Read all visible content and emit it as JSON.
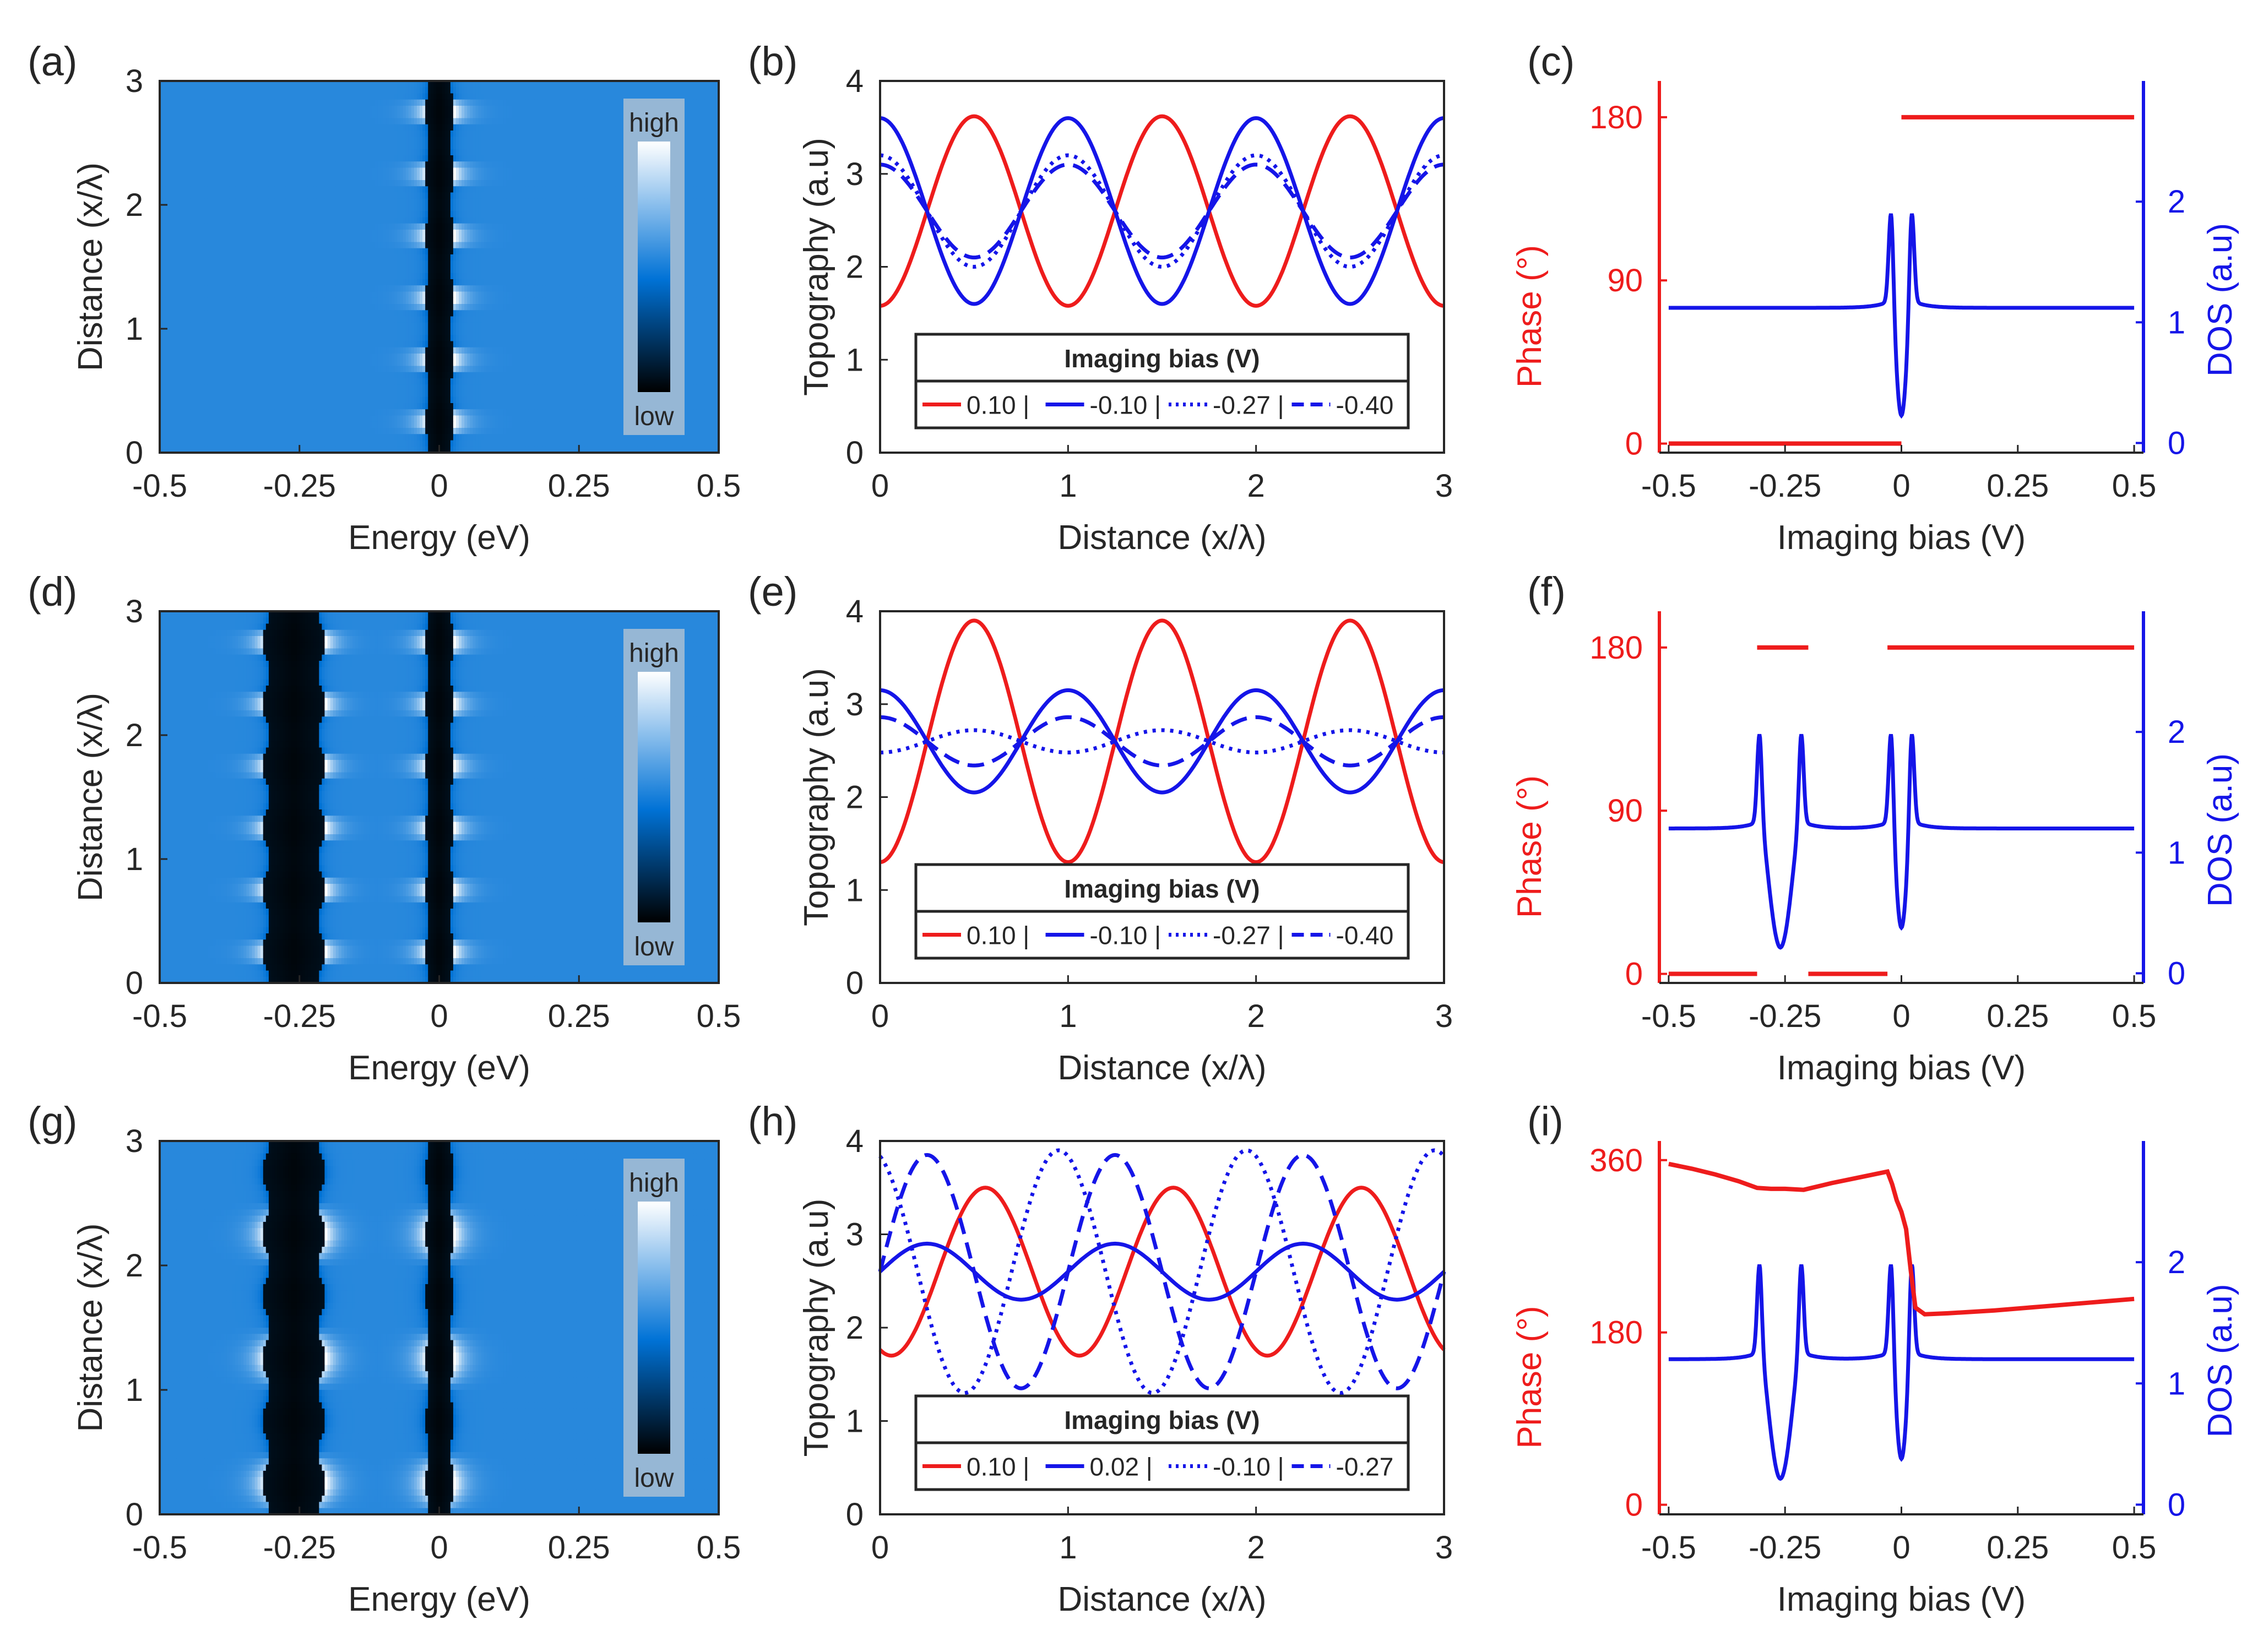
{
  "figure": {
    "panel_labels": [
      "(a)",
      "(b)",
      "(c)",
      "(d)",
      "(e)",
      "(f)",
      "(g)",
      "(h)",
      "(i)"
    ]
  },
  "colors": {
    "red": "#ee1c1c",
    "blue": "#1515e8",
    "axis": "#262626",
    "map_low": "#000000",
    "map_mid": "#0072d6",
    "map_high": "#ffffff"
  },
  "chart_data": [
    {
      "panel": "(a)",
      "type": "heatmap",
      "xlabel": "Energy (eV)",
      "ylabel": "Distance (x/λ)",
      "xlim": [
        -0.5,
        0.5
      ],
      "ylim": [
        0,
        3
      ],
      "xticks": [
        "-0.5",
        "-0.25",
        "0",
        "0.25",
        "0.5"
      ],
      "xtick_values": [
        -0.5,
        -0.25,
        0,
        0.25,
        0.5
      ],
      "yticks": [
        "0",
        "1",
        "2",
        "3"
      ],
      "ytick_values": [
        0,
        1,
        2,
        3
      ],
      "colorbar": {
        "high_label": "high",
        "low_label": "low"
      },
      "gaps": [
        {
          "center": 0.0,
          "width": 0.045
        }
      ],
      "bright_distances": [
        0.25,
        0.75,
        1.25,
        1.75,
        2.25,
        2.75
      ]
    },
    {
      "panel": "(b)",
      "type": "line",
      "xlabel": "Distance (x/λ)",
      "ylabel": "Topography (a.u)",
      "xlim": [
        0,
        3
      ],
      "ylim": [
        0,
        4
      ],
      "xticks": [
        "0",
        "1",
        "2",
        "3"
      ],
      "xtick_values": [
        0,
        1,
        2,
        3
      ],
      "yticks": [
        "0",
        "1",
        "2",
        "3",
        "4"
      ],
      "ytick_values": [
        0,
        1,
        2,
        3,
        4
      ],
      "legend": {
        "title": "Imaging bias (V)",
        "placement": "lower-center"
      },
      "series": [
        {
          "name": "0.10 |",
          "style": "solid",
          "color": "#ee1c1c",
          "model": {
            "offset": 2.6,
            "amplitude": -1.02,
            "period": 1,
            "phase": 0
          }
        },
        {
          "name": "-0.10 |",
          "style": "solid",
          "color": "#1515e8",
          "model": {
            "offset": 2.6,
            "amplitude": 1.0,
            "period": 1,
            "phase": 0
          }
        },
        {
          "name": "-0.27 |",
          "style": "dotted",
          "color": "#1515e8",
          "model": {
            "offset": 2.6,
            "amplitude": 0.6,
            "period": 1,
            "phase": 0
          }
        },
        {
          "name": "-0.40",
          "style": "dashed",
          "color": "#1515e8",
          "model": {
            "offset": 2.6,
            "amplitude": 0.5,
            "period": 1,
            "phase": 0
          }
        }
      ]
    },
    {
      "panel": "(c)",
      "type": "line",
      "xlabel": "Imaging bias (V)",
      "ylabel": "Phase (°)",
      "ylabel_right": "DOS (a.u)",
      "xlim": [
        -0.52,
        0.52
      ],
      "ylim": [
        -5,
        200
      ],
      "ylim_right": [
        -0.08,
        3.0
      ],
      "xticks": [
        "-0.5",
        "-0.25",
        "0",
        "0.25",
        "0.5"
      ],
      "xtick_values": [
        -0.5,
        -0.25,
        0,
        0.25,
        0.5
      ],
      "yticks": [
        "0",
        "90",
        "180"
      ],
      "ytick_values": [
        0,
        90,
        180
      ],
      "yticks_right": [
        "0",
        "1",
        "2"
      ],
      "ytick_values_right": [
        0,
        1,
        2
      ],
      "phase_segments": [
        {
          "x": [
            -0.5,
            0.0
          ],
          "y": [
            0,
            0
          ]
        },
        {
          "x": [
            0.0,
            0.5
          ],
          "y": [
            180,
            180
          ]
        }
      ],
      "dos": {
        "base": 1.12,
        "dips": [
          {
            "center": 0.0,
            "width": 0.045,
            "depth": 0.92
          }
        ]
      }
    },
    {
      "panel": "(d)",
      "type": "heatmap",
      "xlabel": "Energy (eV)",
      "ylabel": "Distance (x/λ)",
      "xlim": [
        -0.5,
        0.5
      ],
      "ylim": [
        0,
        3
      ],
      "xticks": [
        "-0.5",
        "-0.25",
        "0",
        "0.25",
        "0.5"
      ],
      "xtick_values": [
        -0.5,
        -0.25,
        0,
        0.25,
        0.5
      ],
      "yticks": [
        "0",
        "1",
        "2",
        "3"
      ],
      "ytick_values": [
        0,
        1,
        2,
        3
      ],
      "colorbar": {
        "high_label": "high",
        "low_label": "low"
      },
      "gaps": [
        {
          "center": -0.26,
          "width": 0.1
        },
        {
          "center": 0.0,
          "width": 0.045
        }
      ],
      "bright_distances": [
        0.25,
        0.75,
        1.25,
        1.75,
        2.25,
        2.75
      ]
    },
    {
      "panel": "(e)",
      "type": "line",
      "xlabel": "Distance (x/λ)",
      "ylabel": "Topography (a.u)",
      "xlim": [
        0,
        3
      ],
      "ylim": [
        0,
        4
      ],
      "xticks": [
        "0",
        "1",
        "2",
        "3"
      ],
      "xtick_values": [
        0,
        1,
        2,
        3
      ],
      "yticks": [
        "0",
        "1",
        "2",
        "3",
        "4"
      ],
      "ytick_values": [
        0,
        1,
        2,
        3,
        4
      ],
      "legend": {
        "title": "Imaging bias (V)",
        "placement": "lower-center"
      },
      "series": [
        {
          "name": "0.10 |",
          "style": "solid",
          "color": "#ee1c1c",
          "model": {
            "offset": 2.6,
            "amplitude": -1.3,
            "period": 1,
            "phase": 0
          }
        },
        {
          "name": "-0.10 |",
          "style": "solid",
          "color": "#1515e8",
          "model": {
            "offset": 2.6,
            "amplitude": 0.55,
            "period": 1,
            "phase": 0
          }
        },
        {
          "name": "-0.27 |",
          "style": "dotted",
          "color": "#1515e8",
          "model": {
            "offset": 2.6,
            "amplitude": -0.12,
            "period": 1,
            "phase": 0
          }
        },
        {
          "name": "-0.40",
          "style": "dashed",
          "color": "#1515e8",
          "model": {
            "offset": 2.6,
            "amplitude": 0.26,
            "period": 1,
            "phase": 0
          }
        }
      ]
    },
    {
      "panel": "(f)",
      "type": "line",
      "xlabel": "Imaging bias (V)",
      "ylabel": "Phase (°)",
      "ylabel_right": "DOS (a.u)",
      "xlim": [
        -0.52,
        0.52
      ],
      "ylim": [
        -5,
        200
      ],
      "ylim_right": [
        -0.08,
        3.0
      ],
      "xticks": [
        "-0.5",
        "-0.25",
        "0",
        "0.25",
        "0.5"
      ],
      "xtick_values": [
        -0.5,
        -0.25,
        0,
        0.25,
        0.5
      ],
      "yticks": [
        "0",
        "90",
        "180"
      ],
      "ytick_values": [
        0,
        90,
        180
      ],
      "yticks_right": [
        "0",
        "1",
        "2"
      ],
      "ytick_values_right": [
        0,
        1,
        2
      ],
      "phase_segments": [
        {
          "x": [
            -0.5,
            -0.31
          ],
          "y": [
            0,
            0
          ]
        },
        {
          "x": [
            -0.31,
            -0.2
          ],
          "y": [
            180,
            180
          ]
        },
        {
          "x": [
            -0.2,
            -0.03
          ],
          "y": [
            0,
            0
          ]
        },
        {
          "x": [
            -0.03,
            0.5
          ],
          "y": [
            180,
            180
          ]
        }
      ],
      "dos": {
        "base": 1.2,
        "dips": [
          {
            "center": -0.26,
            "width": 0.09,
            "depth": 1.0
          },
          {
            "center": 0.0,
            "width": 0.045,
            "depth": 0.85
          }
        ]
      }
    },
    {
      "panel": "(g)",
      "type": "heatmap",
      "xlabel": "Energy (eV)",
      "ylabel": "Distance (x/λ)",
      "xlim": [
        -0.5,
        0.5
      ],
      "ylim": [
        0,
        3
      ],
      "xticks": [
        "-0.5",
        "-0.25",
        "0",
        "0.25",
        "0.5"
      ],
      "xtick_values": [
        -0.5,
        -0.25,
        0,
        0.25,
        0.5
      ],
      "yticks": [
        "0",
        "1",
        "2",
        "3"
      ],
      "ytick_values": [
        0,
        1,
        2,
        3
      ],
      "colorbar": {
        "high_label": "high",
        "low_label": "low"
      },
      "gaps": [
        {
          "center": -0.26,
          "width": 0.1
        },
        {
          "center": 0.0,
          "width": 0.045
        }
      ],
      "bright_distances": [
        0.25,
        0.75,
        1.25,
        1.75,
        2.25,
        2.75
      ],
      "shifted": true
    },
    {
      "panel": "(h)",
      "type": "line",
      "xlabel": "Distance (x/λ)",
      "ylabel": "Topography (a.u)",
      "xlim": [
        0,
        3
      ],
      "ylim": [
        0,
        4
      ],
      "xticks": [
        "0",
        "1",
        "2",
        "3"
      ],
      "xtick_values": [
        0,
        1,
        2,
        3
      ],
      "yticks": [
        "0",
        "1",
        "2",
        "3",
        "4"
      ],
      "ytick_values": [
        0,
        1,
        2,
        3,
        4
      ],
      "legend": {
        "title": "Imaging bias (V)",
        "placement": "lower-center"
      },
      "series": [
        {
          "name": "0.10 |",
          "style": "solid",
          "color": "#ee1c1c",
          "model": {
            "offset": 2.6,
            "amplitude": -0.9,
            "period": 1,
            "phase": 0.06
          }
        },
        {
          "name": "0.02 |",
          "style": "solid",
          "color": "#1515e8",
          "model": {
            "offset": 2.6,
            "amplitude": 0.3,
            "period": 1,
            "phase": 0.25
          }
        },
        {
          "name": "-0.10 |",
          "style": "dotted",
          "color": "#1515e8",
          "model": {
            "offset": 2.6,
            "amplitude": 1.3,
            "period": 1,
            "phase": -0.05
          }
        },
        {
          "name": "-0.27",
          "style": "dashed",
          "color": "#1515e8",
          "model": {
            "offset": 2.6,
            "amplitude": 1.25,
            "period": 1,
            "phase": 0.25
          }
        }
      ]
    },
    {
      "panel": "(i)",
      "type": "line",
      "xlabel": "Imaging bias (V)",
      "ylabel": "Phase (°)",
      "ylabel_right": "DOS (a.u)",
      "xlim": [
        -0.52,
        0.52
      ],
      "ylim": [
        -10,
        380
      ],
      "ylim_right": [
        -0.08,
        3.0
      ],
      "xticks": [
        "-0.5",
        "-0.25",
        "0",
        "0.25",
        "0.5"
      ],
      "xtick_values": [
        -0.5,
        -0.25,
        0,
        0.25,
        0.5
      ],
      "yticks": [
        "0",
        "180",
        "360"
      ],
      "ytick_values": [
        0,
        180,
        360
      ],
      "yticks_right": [
        "0",
        "1",
        "2"
      ],
      "ytick_values_right": [
        0,
        1,
        2
      ],
      "phase_curve": {
        "x": [
          -0.5,
          -0.45,
          -0.4,
          -0.35,
          -0.31,
          -0.28,
          -0.25,
          -0.21,
          -0.15,
          -0.1,
          -0.05,
          -0.03,
          -0.02,
          -0.01,
          0.0,
          0.01,
          0.02,
          0.03,
          0.05,
          0.1,
          0.2,
          0.3,
          0.4,
          0.5
        ],
        "y": [
          356,
          351,
          345,
          338,
          331,
          330,
          330,
          329,
          336,
          341,
          346,
          348,
          335,
          318,
          306,
          288,
          245,
          206,
          199,
          200,
          203,
          207,
          211,
          215
        ]
      },
      "dos": {
        "base": 1.2,
        "dips": [
          {
            "center": -0.26,
            "width": 0.09,
            "depth": 1.0
          },
          {
            "center": 0.0,
            "width": 0.045,
            "depth": 0.85
          }
        ]
      }
    }
  ]
}
